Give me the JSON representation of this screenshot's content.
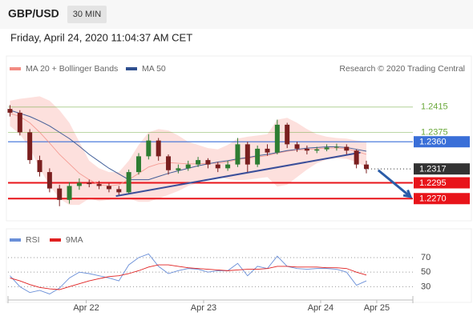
{
  "header": {
    "symbol": "GBP/USD",
    "interval": "30 MIN"
  },
  "chart_data": [
    {
      "type": "candlestick",
      "title": "Friday, April 24, 2020 11:04:37 AM CET",
      "credit": "Research © 2020 Trading Central",
      "up_color": "#2e7d32",
      "down_color": "#7a1f1f",
      "open": [
        1.2412,
        1.2406,
        1.2375,
        1.2331,
        1.2312,
        1.2286,
        1.2268,
        1.229,
        1.2295,
        1.2293,
        1.229,
        1.2285,
        1.228,
        1.2312,
        1.2337,
        1.2362,
        1.2337,
        1.2315,
        1.2318,
        1.2324,
        1.2331,
        1.2324,
        1.2318,
        1.2324,
        1.2356,
        1.2324,
        1.2349,
        1.2343,
        1.2387,
        1.2356,
        1.2349,
        1.2346,
        1.2348,
        1.2351,
        1.2352,
        1.2346,
        1.2324
      ],
      "high": [
        1.2418,
        1.241,
        1.238,
        1.2338,
        1.2318,
        1.2292,
        1.2296,
        1.2302,
        1.23,
        1.2298,
        1.2294,
        1.229,
        1.2316,
        1.2342,
        1.2372,
        1.2366,
        1.234,
        1.2324,
        1.233,
        1.2336,
        1.2334,
        1.2328,
        1.233,
        1.2366,
        1.236,
        1.2354,
        1.2356,
        1.2395,
        1.239,
        1.236,
        1.2354,
        1.2352,
        1.2356,
        1.2357,
        1.2356,
        1.2348,
        1.233
      ],
      "low": [
        1.24,
        1.237,
        1.2325,
        1.2305,
        1.228,
        1.2258,
        1.2262,
        1.2284,
        1.2288,
        1.2285,
        1.228,
        1.2276,
        1.2278,
        1.2308,
        1.2332,
        1.233,
        1.2308,
        1.231,
        1.2314,
        1.232,
        1.2318,
        1.2312,
        1.2314,
        1.232,
        1.2312,
        1.232,
        1.2338,
        1.234,
        1.235,
        1.2344,
        1.234,
        1.2342,
        1.2345,
        1.2346,
        1.234,
        1.2318,
        1.231
      ],
      "close": [
        1.2406,
        1.2375,
        1.2331,
        1.2312,
        1.2286,
        1.2268,
        1.229,
        1.2295,
        1.2293,
        1.229,
        1.2285,
        1.228,
        1.2312,
        1.2337,
        1.2362,
        1.2337,
        1.2315,
        1.2318,
        1.2324,
        1.2331,
        1.2324,
        1.2318,
        1.2324,
        1.2356,
        1.2324,
        1.2349,
        1.2343,
        1.2387,
        1.2356,
        1.2349,
        1.2346,
        1.2348,
        1.2351,
        1.2352,
        1.2346,
        1.2324,
        1.2317
      ],
      "overlays": [
        {
          "name": "MA 20 + Bollinger Bands",
          "color": "#f28b82",
          "band_color": "#fde0dd",
          "values": [
            1.2405,
            1.24,
            1.239,
            1.2375,
            1.2358,
            1.234,
            1.2325,
            1.231,
            1.23,
            1.2292,
            1.229,
            1.2292,
            1.23,
            1.231,
            1.232,
            1.2325,
            1.2327,
            1.2326,
            1.2325,
            1.2325,
            1.2326,
            1.2326,
            1.2328,
            1.2332,
            1.2334,
            1.2336,
            1.2338,
            1.2342,
            1.2345,
            1.2347,
            1.2348,
            1.2349,
            1.235,
            1.235,
            1.2349,
            1.2345,
            1.234
          ],
          "upper": [
            1.2425,
            1.2428,
            1.243,
            1.2432,
            1.2425,
            1.241,
            1.239,
            1.236,
            1.233,
            1.2318,
            1.2312,
            1.2312,
            1.233,
            1.2355,
            1.2375,
            1.238,
            1.2378,
            1.237,
            1.236,
            1.2355,
            1.235,
            1.2348,
            1.2355,
            1.2365,
            1.2368,
            1.237,
            1.2372,
            1.2395,
            1.2398,
            1.239,
            1.238,
            1.2372,
            1.2368,
            1.2366,
            1.2365,
            1.2362,
            1.236
          ],
          "lower": [
            1.2385,
            1.2372,
            1.235,
            1.2318,
            1.2291,
            1.227,
            1.226,
            1.226,
            1.227,
            1.2266,
            1.2268,
            1.2272,
            1.227,
            1.2265,
            1.2265,
            1.227,
            1.2276,
            1.2282,
            1.229,
            1.2295,
            1.2302,
            1.2304,
            1.2301,
            1.2299,
            1.23,
            1.2302,
            1.2304,
            1.2289,
            1.2292,
            1.2304,
            1.2316,
            1.2326,
            1.2332,
            1.2334,
            1.2333,
            1.2328,
            1.232
          ]
        },
        {
          "name": "MA 50",
          "color": "#2f4f8f",
          "values": [
            1.241,
            1.2405,
            1.24,
            1.2393,
            1.2385,
            1.2375,
            1.2365,
            1.2353,
            1.234,
            1.2329,
            1.2318,
            1.2309,
            1.23,
            1.23,
            1.23,
            1.2305,
            1.231,
            1.2314,
            1.2318,
            1.2322,
            1.2325,
            1.2328,
            1.233,
            1.2333,
            1.2335,
            1.2338,
            1.234,
            1.2343,
            1.2346,
            1.2348,
            1.235,
            1.2351,
            1.2352,
            1.2352,
            1.2351,
            1.2348,
            1.2345
          ]
        }
      ],
      "levels": [
        {
          "value": 1.2415,
          "color": "#6aa83a"
        },
        {
          "value": 1.2375,
          "color": "#6aa83a"
        },
        {
          "value": 1.236,
          "label": "1.2360",
          "color": "#3a6fd8",
          "box": true
        },
        {
          "value": 1.2317,
          "color": "#333333",
          "box": true,
          "dotted": true
        },
        {
          "value": 1.2295,
          "color": "#e8141a",
          "box": true
        },
        {
          "value": 1.227,
          "label": "1.2270",
          "color": "#e8141a",
          "box": true
        }
      ],
      "trendline": {
        "x": [
          10.7,
          35.4
        ],
        "y": [
          1.2274,
          1.2343
        ],
        "color": "#3b4f9a"
      },
      "arrow": {
        "x": [
          37.2,
          40.45
        ],
        "y": [
          1.2315,
          1.2273
        ],
        "color": "#2a5ca8"
      },
      "xlim": [
        -0.2,
        40.7
      ],
      "ylim": [
        1.2245,
        1.2435
      ]
    },
    {
      "type": "line",
      "series": [
        {
          "name": "RSI",
          "color": "#6a8fd8",
          "values": [
            45,
            30,
            22,
            25,
            20,
            28,
            42,
            50,
            48,
            45,
            42,
            38,
            60,
            70,
            75,
            58,
            48,
            52,
            55,
            54,
            50,
            52,
            52,
            62,
            45,
            58,
            55,
            72,
            58,
            55,
            54,
            55,
            55,
            54,
            50,
            32,
            38
          ]
        },
        {
          "name": "9MA",
          "color": "#e02020",
          "values": [
            42,
            38,
            33,
            29,
            27,
            26,
            30,
            34,
            38,
            41,
            44,
            45,
            48,
            52,
            57,
            60,
            60,
            58,
            56,
            55,
            54,
            53,
            52,
            53,
            54,
            54,
            55,
            58,
            58,
            57,
            57,
            57,
            56,
            56,
            55,
            50,
            46
          ]
        }
      ],
      "xlim": [
        -0.2,
        40.7
      ],
      "xticks": [
        {
          "value": 7.7,
          "label": "Apr 22"
        },
        {
          "value": 19.56,
          "label": "Apr 23"
        },
        {
          "value": 31.38,
          "label": "Apr 24"
        },
        {
          "value": 37.05,
          "label": "Apr 25"
        }
      ],
      "ylim": [
        15,
        81
      ],
      "yticks": [
        70,
        50,
        30
      ]
    }
  ]
}
